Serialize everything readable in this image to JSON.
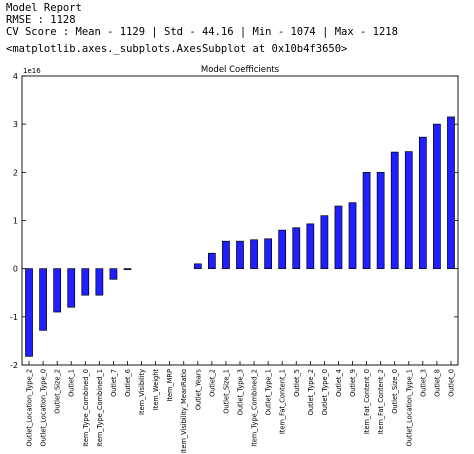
{
  "header": {
    "lines": [
      "Model Report",
      "RMSE : 1128",
      "CV Score : Mean - 1129 | Std - 44.16 | Min - 1074 | Max - 1218"
    ],
    "repr": "<matplotlib.axes._subplots.AxesSubplot at 0x10b4f3650>"
  },
  "chart_data": {
    "type": "bar",
    "title": "Model Coefficients",
    "y_offset_label": "1e16",
    "color": "#1f1fff",
    "categories": [
      "Outlet_Location_Type_2",
      "Outlet_Location_Type_0",
      "Outlet_Size_2",
      "Outlet_1",
      "Item_Type_Combined_0",
      "Item_Type_Combined_1",
      "Outlet_7",
      "Outlet_6",
      "Item_Visibility",
      "Item_Weight",
      "Item_MRP",
      "Item_Visibility_MeanRatio",
      "Outlet_Years",
      "Outlet_2",
      "Outlet_Size_1",
      "Outlet_Type_3",
      "Item_Type_Combined_2",
      "Outlet_Type_1",
      "Item_Fat_Content_1",
      "Outlet_5",
      "Outlet_Type_2",
      "Outlet_Type_0",
      "Outlet_4",
      "Outlet_9",
      "Item_Fat_Content_0",
      "Item_Fat_Content_2",
      "Outlet_Size_0",
      "Outlet_Location_Type_1",
      "Outlet_3",
      "Outlet_8",
      "Outlet_0"
    ],
    "values": [
      -1.82,
      -1.28,
      -0.9,
      -0.8,
      -0.55,
      -0.55,
      -0.22,
      -0.02,
      0,
      0,
      0,
      0,
      0.1,
      0.32,
      0.57,
      0.57,
      0.6,
      0.62,
      0.8,
      0.85,
      0.93,
      1.1,
      1.3,
      1.37,
      2.0,
      2.0,
      2.42,
      2.43,
      2.73,
      3.0,
      3.15
    ],
    "ylim": [
      -2,
      4
    ],
    "yticks": [
      -2,
      -1,
      0,
      1,
      2,
      3,
      4
    ]
  }
}
